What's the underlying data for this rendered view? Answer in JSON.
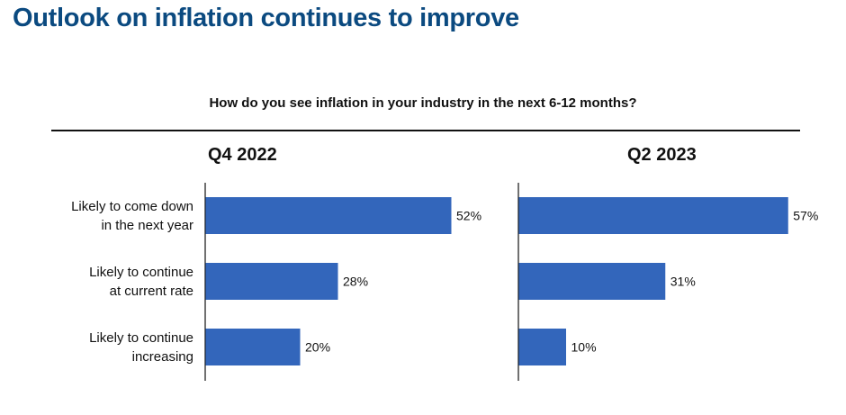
{
  "title": "Outlook on inflation continues to improve",
  "question": "How do you see inflation in your industry in the next 6-12 months?",
  "colors": {
    "bar": "#3366bb",
    "title": "#0b4a80",
    "axis": "#111111"
  },
  "chart_data": [
    {
      "type": "bar",
      "orientation": "horizontal",
      "title": "Q4 2022",
      "categories": [
        "Likely to come down in the next year",
        "Likely to continue at current rate",
        "Likely to continue increasing"
      ],
      "category_lines": [
        [
          "Likely to come down",
          "in the next year"
        ],
        [
          "Likely to continue",
          "at current rate"
        ],
        [
          "Likely to continue",
          "increasing"
        ]
      ],
      "values": [
        52,
        28,
        20
      ],
      "value_labels": [
        "52%",
        "28%",
        "20%"
      ],
      "xlim": [
        0,
        100
      ],
      "unit": "%"
    },
    {
      "type": "bar",
      "orientation": "horizontal",
      "title": "Q2 2023",
      "categories": [
        "Likely to come down in the next year",
        "Likely to continue at current rate",
        "Likely to continue increasing"
      ],
      "values": [
        57,
        31,
        10
      ],
      "value_labels": [
        "57%",
        "31%",
        "10%"
      ],
      "xlim": [
        0,
        100
      ],
      "unit": "%"
    }
  ]
}
